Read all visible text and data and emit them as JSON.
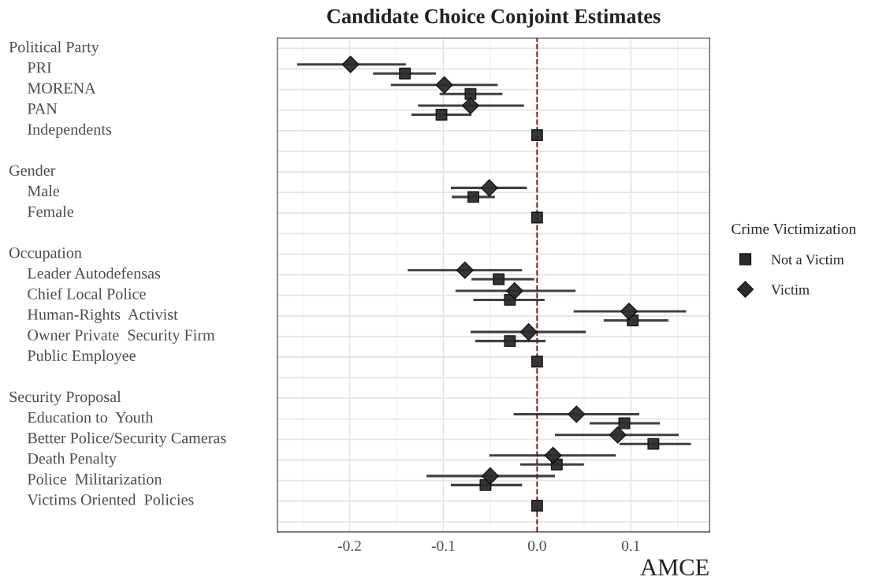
{
  "chart_data": {
    "type": "scatter",
    "orientation": "horizontal",
    "title": "Candidate Choice Conjoint Estimates",
    "xlabel": "AMCE",
    "legend_title": "Crime Victimization",
    "legend": "right",
    "grid": true,
    "annotations": [
      "Political Party",
      "Gender",
      "Occupation",
      "Security Proposal"
    ],
    "categories": [
      null,
      "PRI",
      "MORENA",
      "PAN",
      "Independents",
      null,
      null,
      "Male",
      "Female",
      null,
      null,
      "Leader Autodefensas",
      "Chief Local Police",
      "Human-Rights  Activist",
      "Owner Private  Security Firm",
      "Public Employee",
      null,
      null,
      "Education to  Youth",
      "Better Police/Security Cameras",
      "Death Penalty",
      "Police  Militarization",
      "Victims Oriented  Policies",
      null
    ],
    "series": [
      {
        "name": "Not a Victim",
        "color": "#2b2b2b",
        "marker": "square",
        "values": [
          null,
          -0.141,
          -0.071,
          -0.102,
          0,
          null,
          null,
          -0.068,
          0,
          null,
          null,
          -0.041,
          -0.029,
          0.102,
          -0.029,
          0,
          null,
          null,
          0.093,
          0.124,
          0.021,
          -0.055,
          0,
          null
        ],
        "errors": [
          null,
          [
            -0.175,
            -0.108
          ],
          [
            -0.104,
            -0.037
          ],
          [
            -0.134,
            -0.07
          ],
          null,
          null,
          null,
          [
            -0.091,
            -0.045
          ],
          null,
          null,
          null,
          [
            -0.07,
            -0.003
          ],
          [
            -0.068,
            0.008
          ],
          [
            0.071,
            0.14
          ],
          [
            -0.066,
            0.009
          ],
          null,
          null,
          null,
          [
            0.056,
            0.131
          ],
          [
            0.088,
            0.164
          ],
          [
            -0.018,
            0.05
          ],
          [
            -0.092,
            -0.016
          ],
          null,
          null
        ]
      },
      {
        "name": "Victim",
        "color": "#2b2b2b",
        "marker": "diamond",
        "values": [
          null,
          -0.199,
          -0.099,
          -0.071,
          null,
          null,
          null,
          -0.051,
          null,
          null,
          null,
          -0.077,
          -0.024,
          0.098,
          -0.009,
          null,
          null,
          null,
          0.042,
          0.086,
          0.017,
          -0.05,
          null,
          null
        ],
        "errors": [
          null,
          [
            -0.256,
            -0.14
          ],
          [
            -0.156,
            -0.042
          ],
          [
            -0.127,
            -0.014
          ],
          null,
          null,
          null,
          [
            -0.092,
            -0.011
          ],
          null,
          null,
          null,
          [
            -0.138,
            -0.016
          ],
          [
            -0.087,
            0.041
          ],
          [
            0.039,
            0.159
          ],
          [
            -0.071,
            0.052
          ],
          null,
          null,
          null,
          [
            -0.025,
            0.109
          ],
          [
            0.019,
            0.151
          ],
          [
            -0.051,
            0.084
          ],
          [
            -0.118,
            0.019
          ],
          null,
          null
        ]
      }
    ],
    "xlim": [
      -0.277,
      0.184
    ],
    "xticks": [
      {
        "value": -0.2,
        "label": "-0.2"
      },
      {
        "value": -0.1,
        "label": "-0.1"
      },
      {
        "value": 0,
        "label": "0.0"
      },
      {
        "value": 0.1,
        "label": "0.1"
      }
    ],
    "ref_lines": [
      {
        "axis": "x",
        "value": 0,
        "color": "#8b0000",
        "line_style": "dashed"
      }
    ]
  }
}
